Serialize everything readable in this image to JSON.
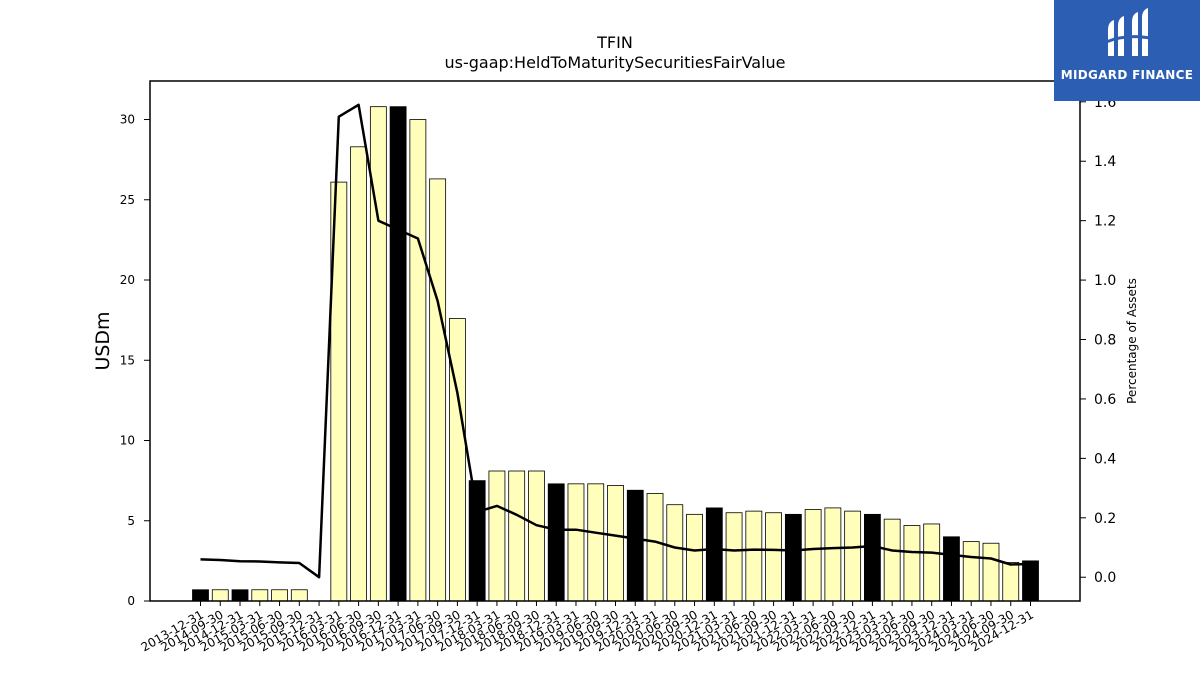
{
  "chart_data": {
    "type": "bar",
    "title": "TFIN",
    "subtitle": "us-gaap:HeldToMaturitySecuritiesFairValue",
    "ylabel": "USDm",
    "y2label": "Percentage of Assets",
    "ylim": [
      0,
      32.4
    ],
    "y2lim": [
      -0.08,
      1.67
    ],
    "yticks": [
      0,
      5,
      10,
      15,
      20,
      25,
      30
    ],
    "y2ticks": [
      0.0,
      0.2,
      0.4,
      0.6,
      0.8,
      1.0,
      1.2,
      1.4,
      1.6
    ],
    "categories": [
      "2013-12-31",
      "2014-09-30",
      "2014-12-31",
      "2015-03-31",
      "2015-06-30",
      "2015-09-30",
      "2015-12-31",
      "2016-03-31",
      "2016-06-30",
      "2016-09-30",
      "2016-12-31",
      "2017-03-31",
      "2017-06-30",
      "2017-09-30",
      "2017-12-31",
      "2018-03-31",
      "2018-06-30",
      "2018-09-30",
      "2018-12-31",
      "2019-03-31",
      "2019-06-30",
      "2019-09-30",
      "2019-12-31",
      "2020-03-31",
      "2020-06-30",
      "2020-09-30",
      "2020-12-31",
      "2021-03-31",
      "2021-06-30",
      "2021-09-30",
      "2021-12-31",
      "2022-03-31",
      "2022-06-30",
      "2022-09-30",
      "2022-12-31",
      "2023-03-31",
      "2023-06-30",
      "2023-09-30",
      "2023-12-31",
      "2024-03-31",
      "2024-06-30",
      "2024-09-30",
      "2024-12-31"
    ],
    "series": [
      {
        "kind": "bar",
        "values": [
          0.7,
          0.7,
          0.7,
          0.7,
          0.7,
          0.7,
          null,
          26.1,
          28.3,
          30.8,
          30.8,
          30.0,
          26.3,
          17.6,
          7.5,
          8.1,
          8.1,
          8.1,
          7.3,
          7.3,
          7.3,
          7.2,
          6.9,
          6.7,
          6.0,
          5.4,
          5.8,
          5.5,
          5.6,
          5.5,
          5.4,
          5.7,
          5.8,
          5.6,
          5.4,
          5.1,
          4.7,
          4.8,
          4.0,
          3.7,
          3.6,
          2.4,
          2.5
        ],
        "year_end_highlight": [
          true,
          false,
          true,
          false,
          false,
          false,
          true,
          false,
          false,
          false,
          true,
          false,
          false,
          false,
          true,
          false,
          false,
          false,
          true,
          false,
          false,
          false,
          true,
          false,
          false,
          false,
          true,
          false,
          false,
          false,
          true,
          false,
          false,
          false,
          true,
          false,
          false,
          false,
          true,
          false,
          false,
          false,
          true
        ]
      },
      {
        "kind": "line",
        "axis": "right",
        "values": [
          0.06,
          0.058,
          0.054,
          0.053,
          0.05,
          0.048,
          0.0,
          1.55,
          1.59,
          1.2,
          1.17,
          1.14,
          0.93,
          0.62,
          0.22,
          0.24,
          0.21,
          0.175,
          0.16,
          0.16,
          0.15,
          0.14,
          0.13,
          0.12,
          0.1,
          0.09,
          0.095,
          0.09,
          0.093,
          0.092,
          0.09,
          0.095,
          0.098,
          0.1,
          0.105,
          0.09,
          0.085,
          0.083,
          0.075,
          0.068,
          0.063,
          0.043,
          0.045
        ]
      }
    ],
    "colors": {
      "bar": "#ffffbb",
      "bar_highlight": "#000000",
      "line": "#000000"
    }
  },
  "logo": {
    "text": "MIDGARD FINANCE"
  }
}
